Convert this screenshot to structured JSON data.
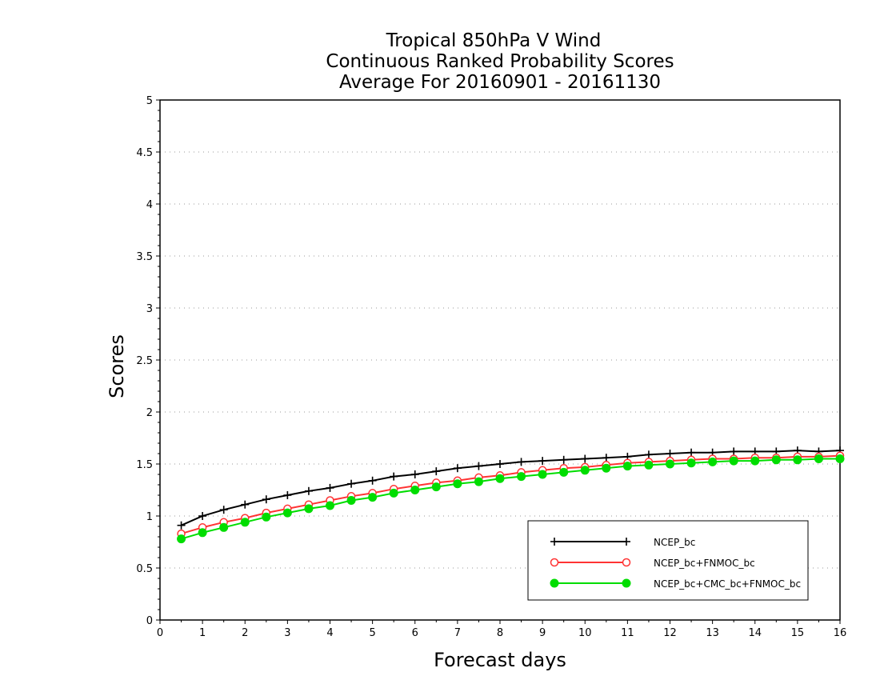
{
  "chart_data": {
    "type": "line",
    "title": [
      "Tropical 850hPa V Wind",
      "Continuous Ranked Probability Scores",
      "Average For 20160901 - 20161130"
    ],
    "xlabel": "Forecast days",
    "ylabel": "Scores",
    "xlim": [
      0,
      16
    ],
    "ylim": [
      0,
      5
    ],
    "xticks": [
      "0",
      "1",
      "2",
      "3",
      "4",
      "5",
      "6",
      "7",
      "8",
      "9",
      "10",
      "11",
      "12",
      "13",
      "14",
      "15",
      "16"
    ],
    "yticks": [
      "0",
      "0.5",
      "1",
      "1.5",
      "2",
      "2.5",
      "3",
      "3.5",
      "4",
      "4.5",
      "5"
    ],
    "ytick_values": [
      0,
      0.5,
      1,
      1.5,
      2,
      2.5,
      3,
      3.5,
      4,
      4.5,
      5
    ],
    "grid": "horizontal dotted",
    "legend_position": "bottom-right",
    "x": [
      0.5,
      1,
      1.5,
      2,
      2.5,
      3,
      3.5,
      4,
      4.5,
      5,
      5.5,
      6,
      6.5,
      7,
      7.5,
      8,
      8.5,
      9,
      9.5,
      10,
      10.5,
      11,
      11.5,
      12,
      12.5,
      13,
      13.5,
      14,
      14.5,
      15,
      15.5,
      16
    ],
    "series": [
      {
        "name": "NCEP_bc",
        "color": "#000000",
        "marker": "plus",
        "values": [
          0.91,
          1.0,
          1.06,
          1.11,
          1.16,
          1.2,
          1.24,
          1.27,
          1.31,
          1.34,
          1.38,
          1.4,
          1.43,
          1.46,
          1.48,
          1.5,
          1.52,
          1.53,
          1.54,
          1.55,
          1.56,
          1.57,
          1.59,
          1.6,
          1.61,
          1.61,
          1.62,
          1.62,
          1.62,
          1.63,
          1.62,
          1.63
        ]
      },
      {
        "name": "NCEP_bc+FNMOC_bc",
        "color": "#ff3333",
        "marker": "open-circle",
        "values": [
          0.83,
          0.89,
          0.94,
          0.98,
          1.03,
          1.07,
          1.11,
          1.15,
          1.19,
          1.22,
          1.26,
          1.29,
          1.32,
          1.34,
          1.37,
          1.39,
          1.42,
          1.44,
          1.46,
          1.47,
          1.49,
          1.51,
          1.52,
          1.53,
          1.54,
          1.55,
          1.55,
          1.56,
          1.56,
          1.57,
          1.57,
          1.58
        ]
      },
      {
        "name": "NCEP_bc+CMC_bc+FNMOC_bc",
        "color": "#00dd00",
        "marker": "filled-circle",
        "values": [
          0.78,
          0.84,
          0.89,
          0.94,
          0.99,
          1.03,
          1.07,
          1.1,
          1.15,
          1.18,
          1.22,
          1.25,
          1.28,
          1.31,
          1.33,
          1.36,
          1.38,
          1.4,
          1.42,
          1.44,
          1.46,
          1.48,
          1.49,
          1.5,
          1.51,
          1.52,
          1.53,
          1.53,
          1.54,
          1.54,
          1.55,
          1.55
        ]
      }
    ]
  }
}
